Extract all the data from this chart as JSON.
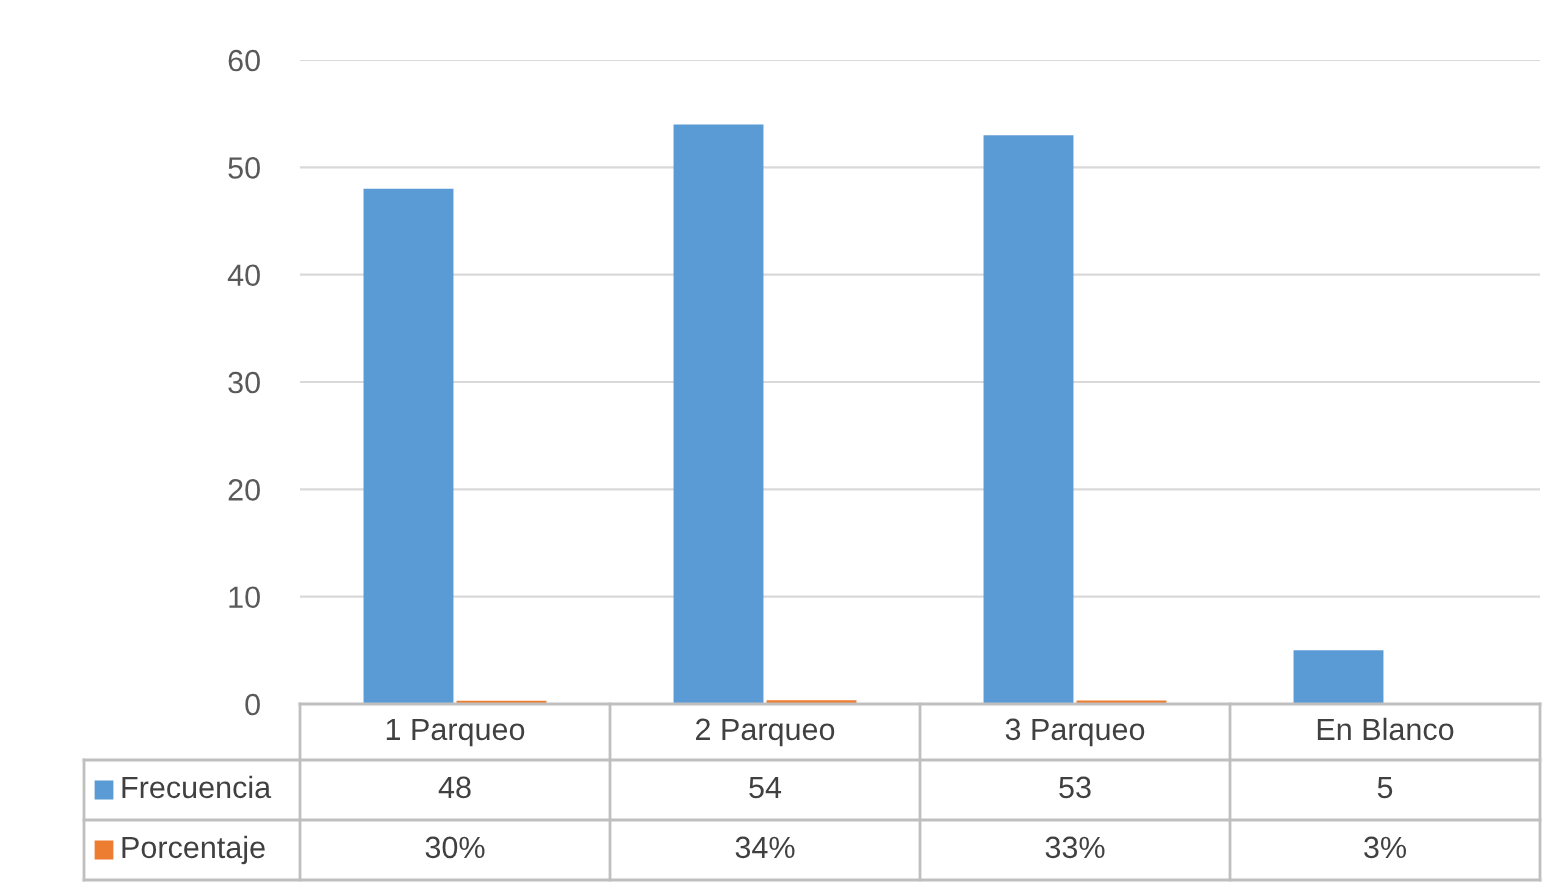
{
  "chart_data": {
    "type": "bar",
    "categories": [
      "1 Parqueo",
      "2 Parqueo",
      "3 Parqueo",
      "En Blanco"
    ],
    "series": [
      {
        "name": "Frecuencia",
        "color": "#5b9bd5",
        "values": [
          48,
          54,
          53,
          5
        ],
        "value_labels": [
          "48",
          "54",
          "53",
          "5"
        ]
      },
      {
        "name": "Porcentaje",
        "color": "#ed7d31",
        "values": [
          0.3,
          0.34,
          0.33,
          0.03
        ],
        "value_labels": [
          "30%",
          "34%",
          "33%",
          "3%"
        ]
      }
    ],
    "ylim": [
      0,
      60
    ],
    "yticks": [
      0,
      10,
      20,
      30,
      40,
      50,
      60
    ],
    "grid": "y",
    "legend": "bottom left"
  }
}
